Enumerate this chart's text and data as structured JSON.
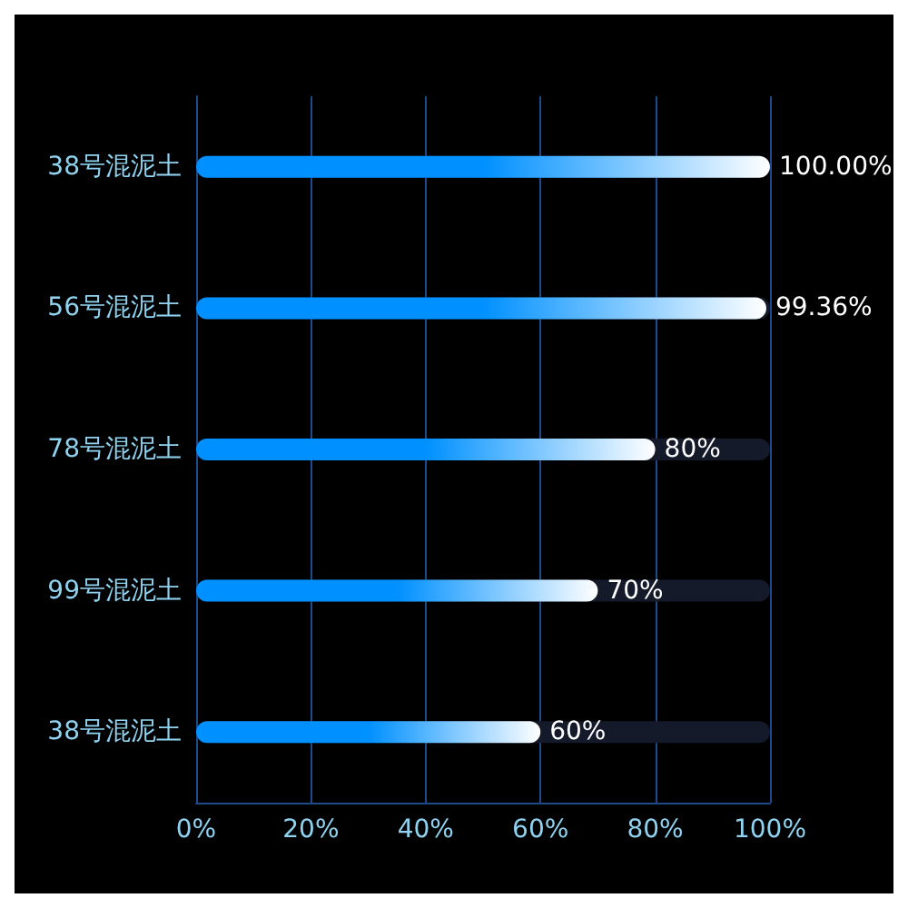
{
  "chart_data": {
    "type": "bar",
    "orientation": "horizontal",
    "categories": [
      "38号混泥土",
      "56号混泥土",
      "78号混泥土",
      "99号混泥土",
      "38号混泥土"
    ],
    "values": [
      100,
      99.36,
      80,
      70,
      60
    ],
    "value_labels": [
      "100.00%",
      "99.36%",
      "80%",
      "70%",
      "60%"
    ],
    "color": "#0090ff",
    "xlim": [
      0,
      100
    ],
    "xticks": [
      {
        "value": 0,
        "label": "0%"
      },
      {
        "value": 20,
        "label": "20%"
      },
      {
        "value": 40,
        "label": "40%"
      },
      {
        "value": 60,
        "label": "60%"
      },
      {
        "value": 80,
        "label": "80%"
      },
      {
        "value": 100,
        "label": "100%"
      }
    ],
    "grid": "x"
  }
}
